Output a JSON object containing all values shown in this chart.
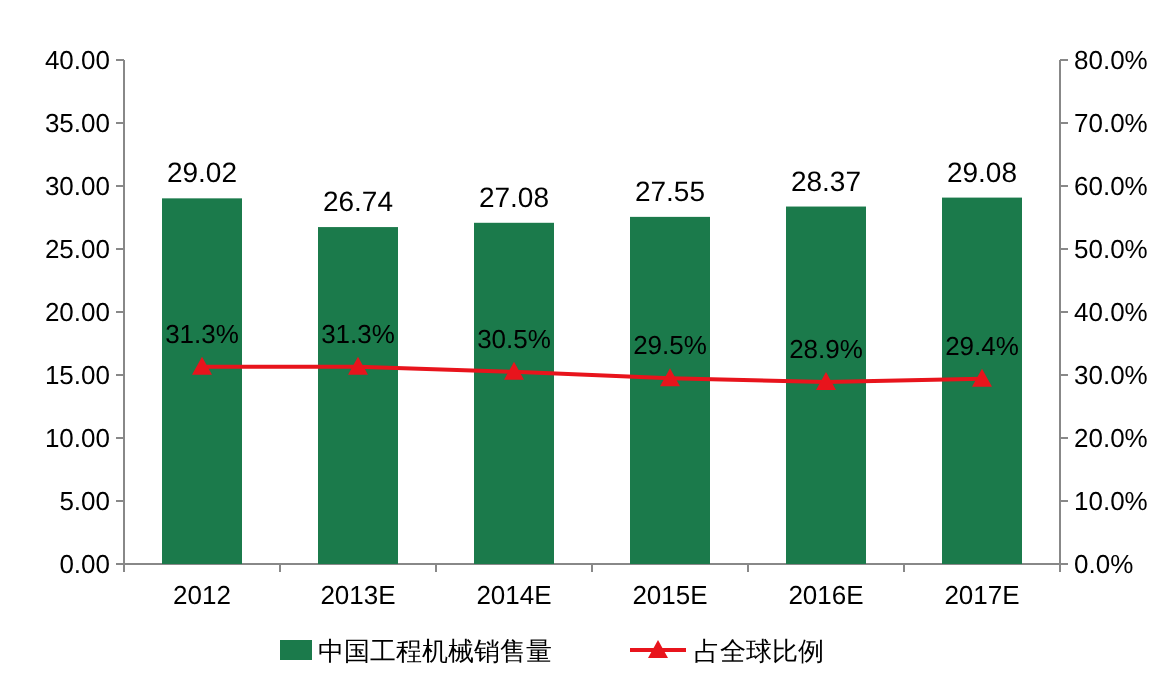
{
  "chart_data": {
    "type": "bar",
    "categories": [
      "2012",
      "2013E",
      "2014E",
      "2015E",
      "2016E",
      "2017E"
    ],
    "series": [
      {
        "name": "中国工程机械销售量",
        "color": "#1b7a4b",
        "values": [
          29.02,
          26.74,
          27.08,
          27.55,
          28.37,
          29.08
        ],
        "value_labels": [
          "29.02",
          "26.74",
          "27.08",
          "27.55",
          "28.37",
          "29.08"
        ]
      },
      {
        "name": "占全球比例",
        "type": "line",
        "axis": "y2",
        "color": "#e8141c",
        "marker": "triangle",
        "values": [
          31.3,
          31.3,
          30.5,
          29.5,
          28.9,
          29.4
        ],
        "value_labels": [
          "31.3%",
          "31.3%",
          "30.5%",
          "29.5%",
          "28.9%",
          "29.4%"
        ]
      }
    ],
    "ylim": [
      0,
      40
    ],
    "yticks": [
      {
        "value": 0,
        "label": "0.00"
      },
      {
        "value": 5,
        "label": "5.00"
      },
      {
        "value": 10,
        "label": "10.00"
      },
      {
        "value": 15,
        "label": "15.00"
      },
      {
        "value": 20,
        "label": "20.00"
      },
      {
        "value": 25,
        "label": "25.00"
      },
      {
        "value": 30,
        "label": "30.00"
      },
      {
        "value": 35,
        "label": "35.00"
      },
      {
        "value": 40,
        "label": "40.00"
      }
    ],
    "y2lim": [
      0,
      80
    ],
    "y2ticks": [
      {
        "value": 0,
        "label": "0.0%"
      },
      {
        "value": 10,
        "label": "10.0%"
      },
      {
        "value": 20,
        "label": "20.0%"
      },
      {
        "value": 30,
        "label": "30.0%"
      },
      {
        "value": 40,
        "label": "40.0%"
      },
      {
        "value": 50,
        "label": "50.0%"
      },
      {
        "value": 60,
        "label": "60.0%"
      },
      {
        "value": 70,
        "label": "70.0%"
      },
      {
        "value": 80,
        "label": "80.0%"
      }
    ],
    "legend": "bottom"
  }
}
